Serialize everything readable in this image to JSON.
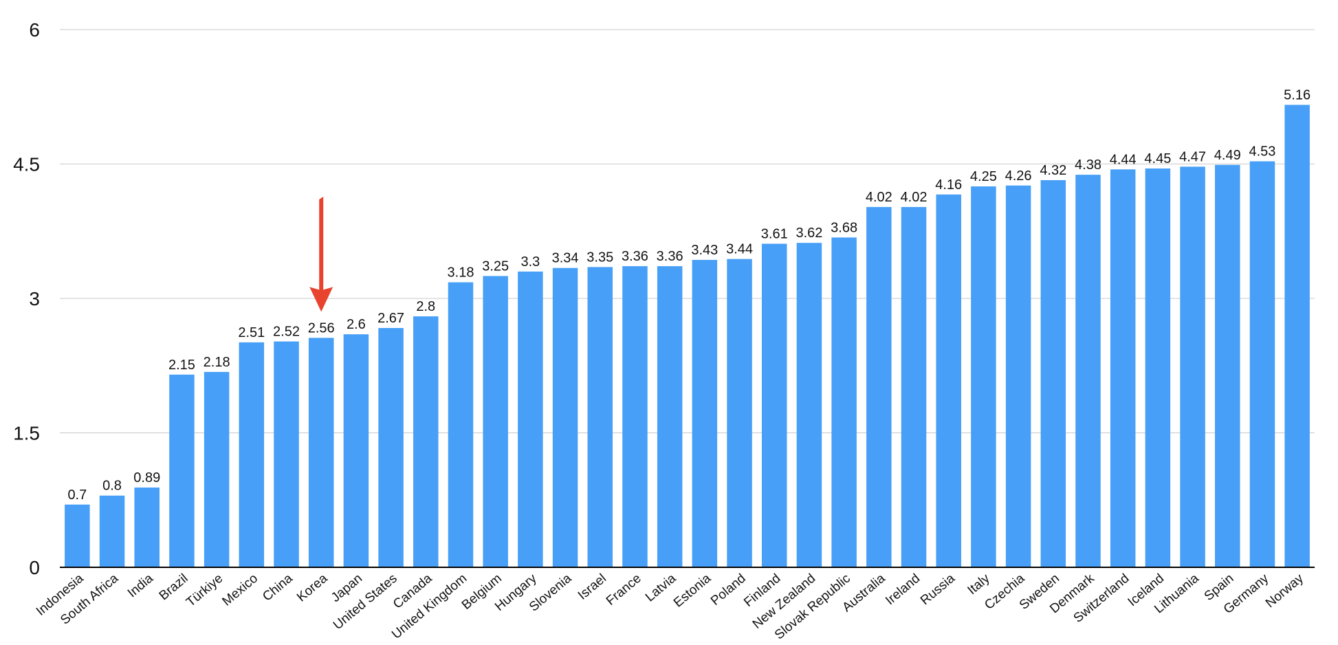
{
  "chart_data": {
    "type": "bar",
    "title": "",
    "xlabel": "",
    "ylabel": "",
    "ylim": [
      0,
      6
    ],
    "yticks": [
      "0",
      "1.5",
      "3",
      "4.5",
      "6"
    ],
    "grid": true,
    "legend": "none",
    "categories": [
      "Indonesia",
      "South Africa",
      "India",
      "Brazil",
      "Türkiye",
      "Mexico",
      "China",
      "Korea",
      "Japan",
      "United States",
      "Canada",
      "United Kingdom",
      "Belgium",
      "Hungary",
      "Slovenia",
      "Israel",
      "France",
      "Latvia",
      "Estonia",
      "Poland",
      "Finland",
      "New Zealand",
      "Slovak Republic",
      "Australia",
      "Ireland",
      "Russia",
      "Italy",
      "Czechia",
      "Sweden",
      "Denmark",
      "Switzerland",
      "Iceland",
      "Lithuania",
      "Spain",
      "Germany",
      "Norway"
    ],
    "values": [
      0.7,
      0.8,
      0.89,
      2.15,
      2.18,
      2.51,
      2.52,
      2.56,
      2.6,
      2.67,
      2.8,
      3.18,
      3.25,
      3.3,
      3.34,
      3.35,
      3.36,
      3.36,
      3.43,
      3.44,
      3.61,
      3.62,
      3.68,
      4.02,
      4.02,
      4.16,
      4.25,
      4.26,
      4.32,
      4.38,
      4.44,
      4.45,
      4.47,
      4.49,
      4.53,
      5.16
    ],
    "data_labels": [
      "0.7",
      "0.8",
      "0.89",
      "2.15",
      "2.18",
      "2.51",
      "2.52",
      "2.56",
      "2.6",
      "2.67",
      "2.8",
      "3.18",
      "3.25",
      "3.3",
      "3.34",
      "3.35",
      "3.36",
      "3.36",
      "3.43",
      "3.44",
      "3.61",
      "3.62",
      "3.68",
      "4.02",
      "4.02",
      "4.16",
      "4.25",
      "4.26",
      "4.32",
      "4.38",
      "4.44",
      "4.45",
      "4.47",
      "4.49",
      "4.53",
      "5.16"
    ],
    "highlight": {
      "category": "Korea",
      "marker": "red-arrow"
    }
  },
  "colors": {
    "bar": "#479ff7",
    "grid": "#c8c8c8",
    "axis": "#000000",
    "arrow": "#e8432e"
  }
}
